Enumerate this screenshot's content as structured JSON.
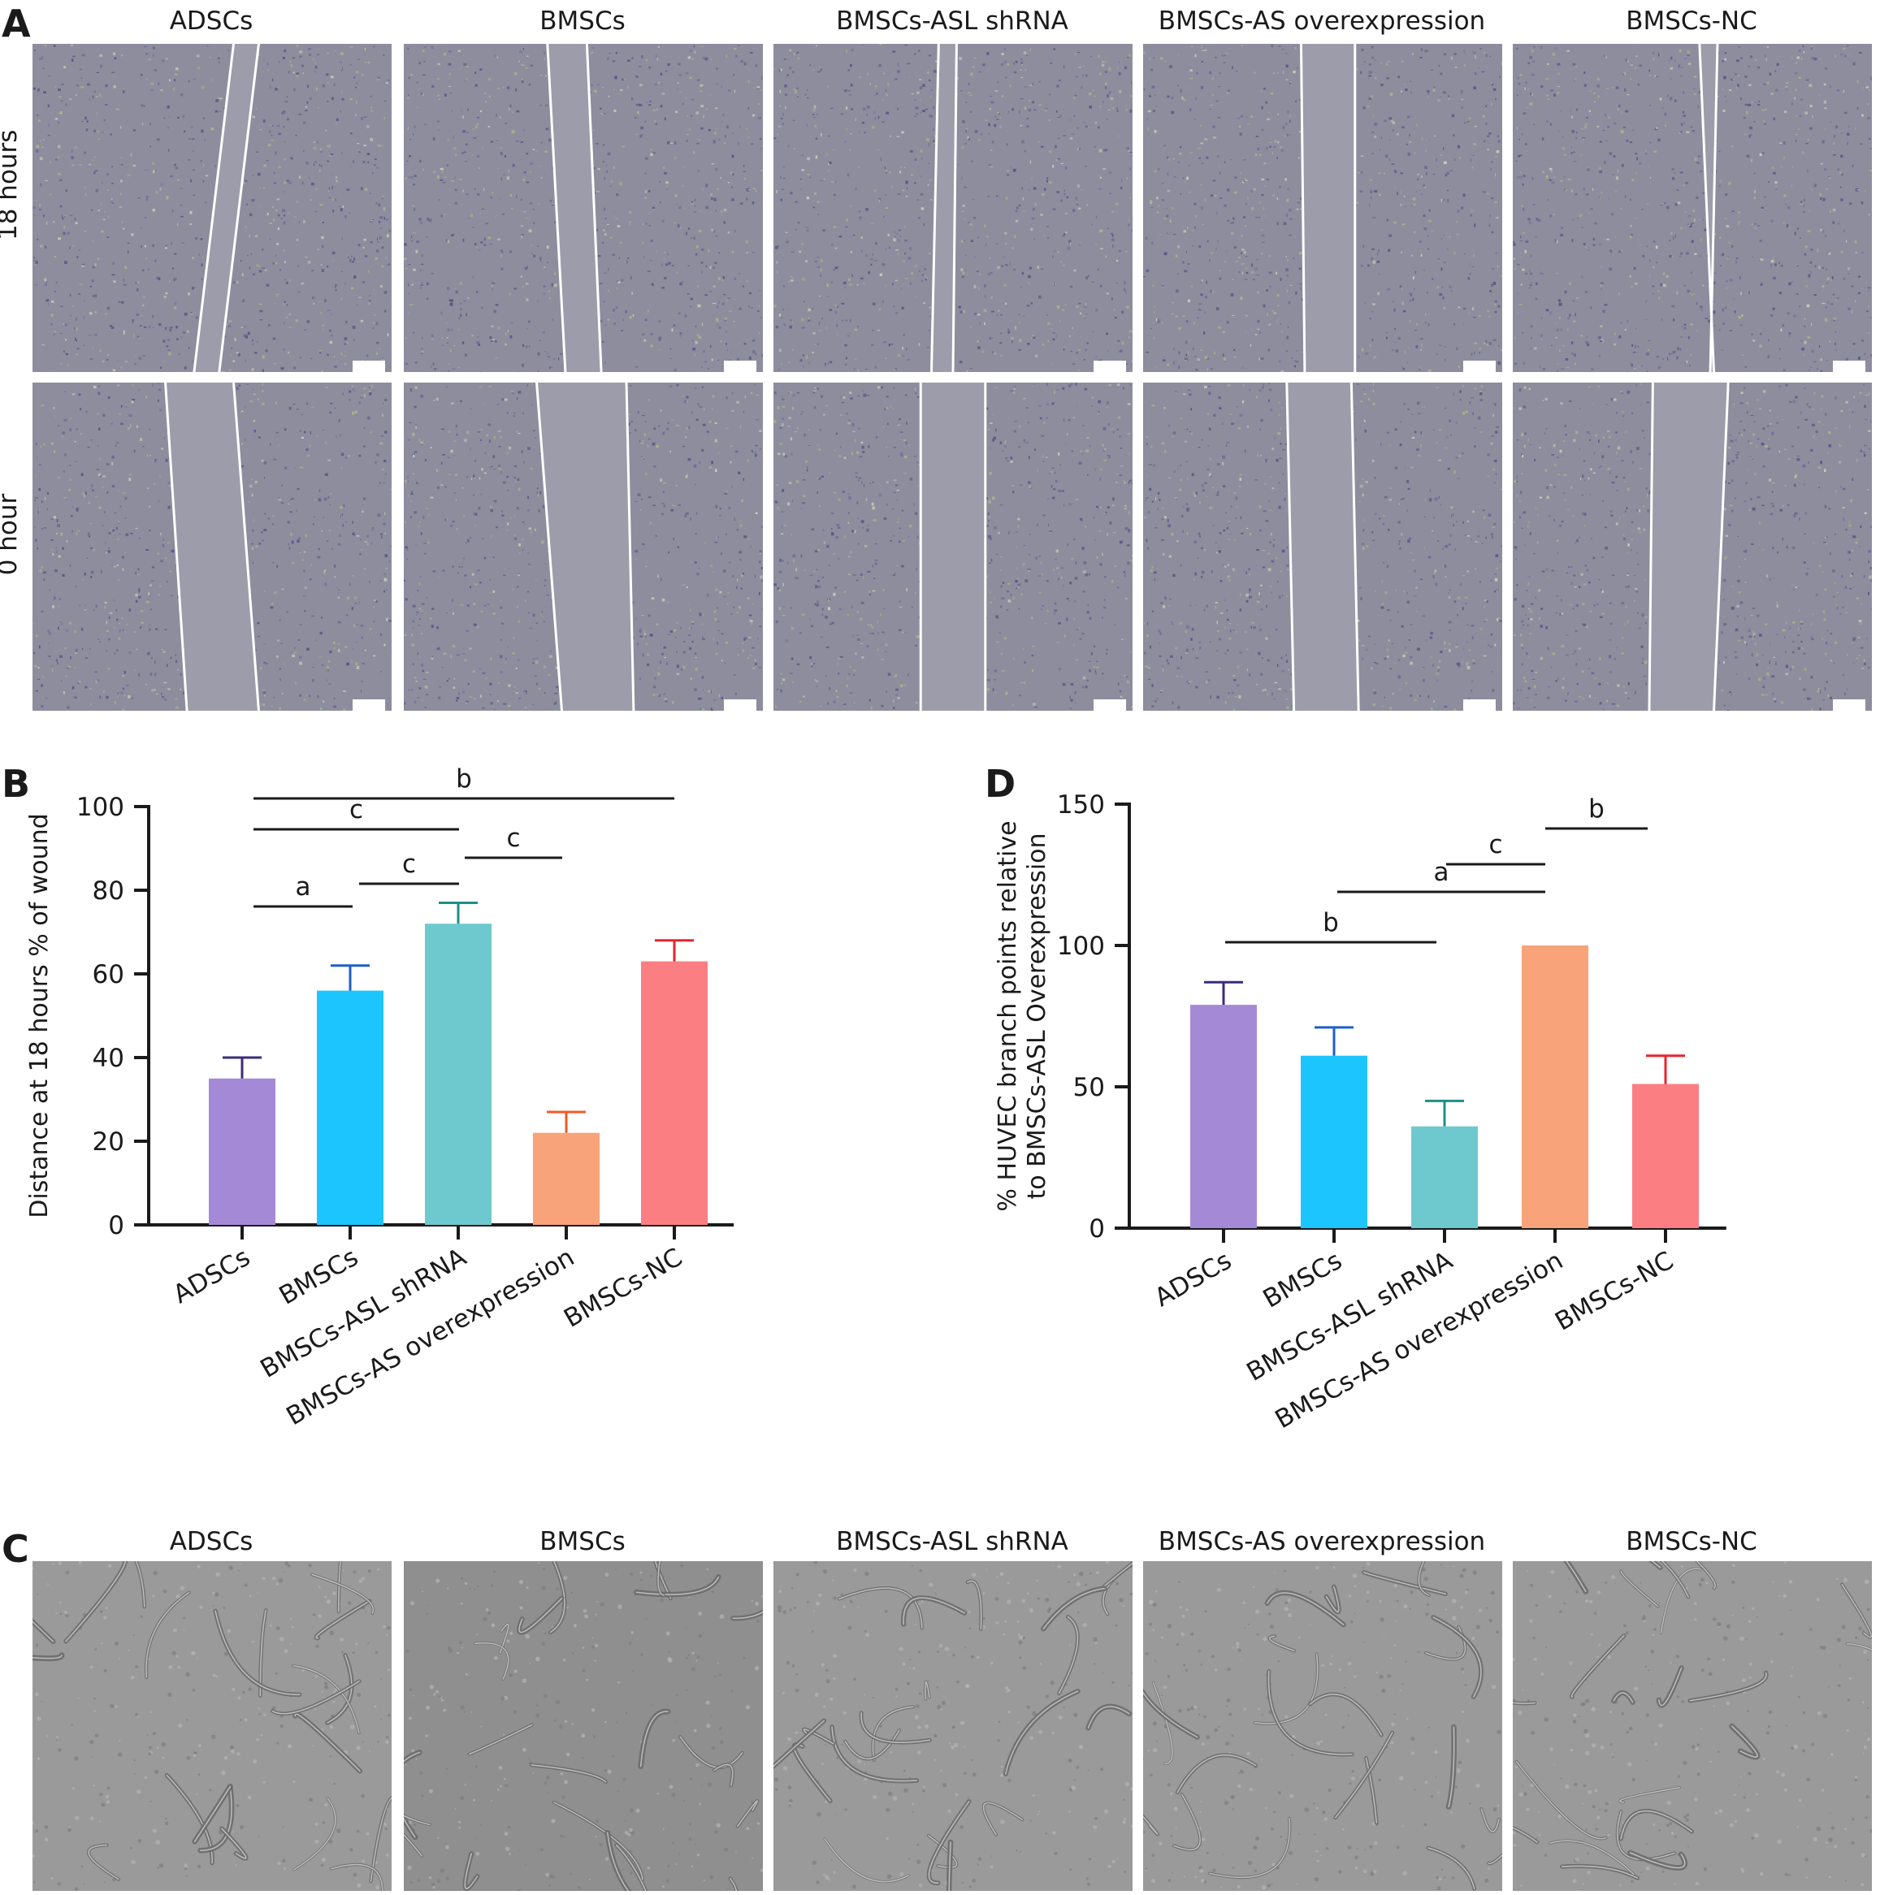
{
  "panel_letters": {
    "a": "A",
    "b": "B",
    "c": "C",
    "d": "D"
  },
  "groups": [
    "ADSCs",
    "BMSCs",
    "BMSCs-ASL shRNA",
    "BMSCs-AS overexpression",
    "BMSCs-NC"
  ],
  "panel_a": {
    "row_labels": [
      "18 hours",
      "0 hour"
    ],
    "image_kind": "scratch wound micrographs"
  },
  "panel_c": {
    "image_kind": "tube formation micrographs"
  },
  "chart_data": [
    {
      "id": "B",
      "type": "bar",
      "categories": [
        "ADSCs",
        "BMSCs",
        "BMSCs-ASL shRNA",
        "BMSCs-AS overexpression",
        "BMSCs-NC"
      ],
      "values": [
        35,
        56,
        72,
        22,
        63
      ],
      "errors": [
        5,
        6,
        5,
        5,
        5
      ],
      "colors": [
        "#a48ad6",
        "#1cc5fd",
        "#6ec9ce",
        "#f8a379",
        "#fb7e83"
      ],
      "error_colors": [
        "#3d2c7a",
        "#1e5fc9",
        "#1e8f87",
        "#f15a24",
        "#e8252b"
      ],
      "ylabel": "Distance at 18 hours % of  wound",
      "ylim": [
        0,
        100
      ],
      "yticks": [
        0,
        20,
        40,
        60,
        80,
        100
      ],
      "significance": [
        {
          "from": 0,
          "to": 4,
          "label": "b"
        },
        {
          "from": 0,
          "to": 2,
          "label": "c"
        },
        {
          "from": 2,
          "to": 3,
          "label": "c"
        },
        {
          "from": 1,
          "to": 2,
          "label": "c"
        },
        {
          "from": 0,
          "to": 1,
          "label": "a"
        }
      ]
    },
    {
      "id": "D",
      "type": "bar",
      "categories": [
        "ADSCs",
        "BMSCs",
        "BMSCs-ASL shRNA",
        "BMSCs-AS overexpression",
        "BMSCs-NC"
      ],
      "values": [
        79,
        61,
        36,
        100,
        51
      ],
      "errors": [
        8,
        10,
        9,
        0,
        10
      ],
      "colors": [
        "#a48ad6",
        "#1cc5fd",
        "#6ec9ce",
        "#f8a379",
        "#fb7e83"
      ],
      "error_colors": [
        "#3d2c7a",
        "#1e5fc9",
        "#1e8f87",
        "#f15a24",
        "#e8252b"
      ],
      "ylabel": [
        "% HUVEC branch points relative",
        "to BMSCs-ASL Overexpression"
      ],
      "ylim": [
        0,
        150
      ],
      "yticks": [
        0,
        50,
        100,
        150
      ],
      "significance": [
        {
          "from": 3,
          "to": 4,
          "label": "b"
        },
        {
          "from": 2,
          "to": 3,
          "label": "c"
        },
        {
          "from": 1,
          "to": 3,
          "label": "a"
        },
        {
          "from": 0,
          "to": 2,
          "label": "b"
        }
      ]
    }
  ]
}
